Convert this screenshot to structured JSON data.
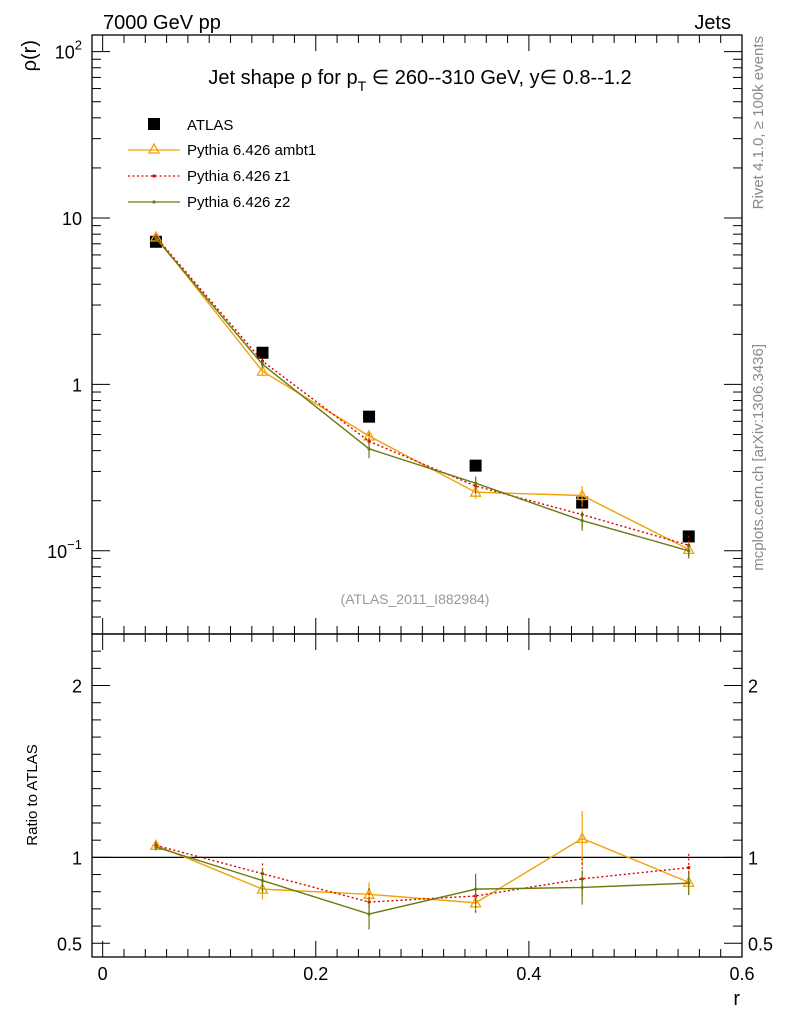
{
  "header": {
    "left": "7000 GeV pp",
    "right": "Jets"
  },
  "side_labels": {
    "top": "Rivet 4.1.0, ≥ 100k events",
    "bottom": "mcplots.cern.ch [arXiv:1306.3436]"
  },
  "chart_data": {
    "type": "line",
    "title_parts": {
      "prefix": "Jet shape ρ for p",
      "subscript": "T",
      "suffix": " ∈ 260--310 GeV, y∈ 0.8--1.2"
    },
    "analysis_tag": "(ATLAS_2011_I882984)",
    "xlabel": "r",
    "ylabel_main": "ρ(r)",
    "ylabel_ratio": "Ratio to ATLAS",
    "x_ticks": [
      "0",
      "0.2",
      "0.4",
      "0.6"
    ],
    "x_tick_values": [
      0,
      0.2,
      0.4,
      0.6
    ],
    "xlim": [
      -0.01,
      0.6
    ],
    "main_ylim_log10": [
      -1.5,
      2.1
    ],
    "main_y_tick_labels": [
      {
        "value": 0.1,
        "base": "10",
        "exp": "−1"
      },
      {
        "value": 1,
        "base": "1",
        "exp": ""
      },
      {
        "value": 10,
        "base": "10",
        "exp": ""
      },
      {
        "value": 100,
        "base": "10",
        "exp": "2"
      }
    ],
    "ratio_ylim": [
      0.42,
      2.3
    ],
    "ratio_y_ticks": [
      {
        "value": 0.5,
        "label": "0.5"
      },
      {
        "value": 1,
        "label": "1"
      },
      {
        "value": 2,
        "label": "2"
      }
    ],
    "x": [
      0.05,
      0.15,
      0.25,
      0.35,
      0.45,
      0.55
    ],
    "series": [
      {
        "name": "ATLAS",
        "style": "data",
        "color": "#000000",
        "values": [
          7.2,
          1.55,
          0.64,
          0.325,
          0.195,
          0.122
        ],
        "errors": [
          0.2,
          0.05,
          0.03,
          0.015,
          0.01,
          0.006
        ]
      },
      {
        "name": "Pythia 6.426 ambt1",
        "style": "triangle",
        "color": "#f0a30a",
        "values": [
          7.7,
          1.2,
          0.49,
          0.225,
          0.215,
          0.102
        ],
        "errors": [
          0.3,
          0.06,
          0.04,
          0.02,
          0.03,
          0.01
        ],
        "ratio": [
          1.07,
          0.815,
          0.785,
          0.735,
          1.11,
          0.855
        ],
        "ratio_errors": [
          0.02,
          0.06,
          0.07,
          0.06,
          0.16,
          0.07
        ]
      },
      {
        "name": "Pythia 6.426 z1",
        "style": "dotted",
        "color": "#dd0000",
        "values": [
          7.7,
          1.38,
          0.455,
          0.245,
          0.165,
          0.108
        ],
        "errors": [
          0.3,
          0.07,
          0.05,
          0.03,
          0.03,
          0.015
        ],
        "ratio": [
          1.07,
          0.905,
          0.74,
          0.775,
          0.875,
          0.94
        ],
        "ratio_errors": [
          0.02,
          0.06,
          0.08,
          0.1,
          0.12,
          0.08
        ]
      },
      {
        "name": "Pythia 6.426 z2",
        "style": "solid",
        "color": "#6b7a10",
        "values": [
          7.55,
          1.32,
          0.41,
          0.255,
          0.152,
          0.1
        ],
        "errors": [
          0.3,
          0.06,
          0.05,
          0.025,
          0.02,
          0.01
        ],
        "ratio": [
          1.06,
          0.865,
          0.67,
          0.815,
          0.825,
          0.85
        ],
        "ratio_errors": [
          0.02,
          0.07,
          0.09,
          0.09,
          0.1,
          0.07
        ]
      }
    ]
  }
}
